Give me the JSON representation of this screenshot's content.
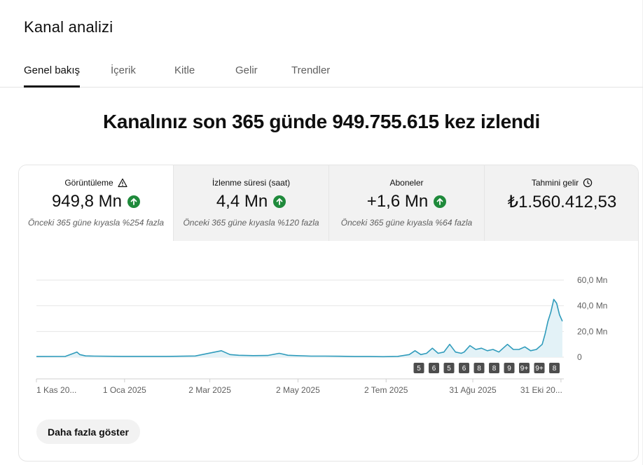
{
  "page": {
    "title": "Kanal analizi"
  },
  "tabs": [
    {
      "label": "Genel bakış",
      "active": true
    },
    {
      "label": "İçerik",
      "active": false
    },
    {
      "label": "Kitle",
      "active": false
    },
    {
      "label": "Gelir",
      "active": false
    },
    {
      "label": "Trendler",
      "active": false
    }
  ],
  "headline": "Kanalınız son 365 günde 949.755.615 kez izlendi",
  "metrics": [
    {
      "label": "Görüntüleme",
      "icon": "warning-icon",
      "value": "949,8 Mn",
      "trend": "up",
      "note": "Önceki 365 güne kıyasla %254 fazla"
    },
    {
      "label": "İzlenme süresi (saat)",
      "value": "4,4 Mn",
      "trend": "up",
      "note": "Önceki 365 güne kıyasla %120 fazla"
    },
    {
      "label": "Aboneler",
      "value": "+1,6 Mn",
      "trend": "up",
      "note": "Önceki 365 güne kıyasla %64 fazla"
    },
    {
      "label": "Tahmini gelir",
      "icon": "clock-icon",
      "value": "₺1.560.412,53"
    }
  ],
  "colors": {
    "line": "#2f9bbb",
    "fill": "#e3f2f7",
    "up": "#1f8a3b",
    "badge": "#4d4d4d"
  },
  "chart_data": {
    "type": "line",
    "y_ticks": [
      "60,0 Mn",
      "40,0 Mn",
      "20,0 Mn",
      "0"
    ],
    "y_values": [
      60,
      40,
      20,
      0
    ],
    "ylim": [
      0,
      60
    ],
    "x_tick_labels": [
      "1 Kas 20...",
      "1 Oca 2025",
      "2 Mar 2025",
      "2 May 2025",
      "2 Tem 2025",
      "31 Ağu 2025",
      "31 Eki 20..."
    ],
    "x_tick_days": [
      0,
      61,
      120,
      181,
      242,
      302,
      363
    ],
    "series": [
      {
        "days": [
          0,
          20,
          28,
          30,
          34,
          40,
          60,
          90,
          110,
          128,
          130,
          134,
          140,
          150,
          160,
          168,
          170,
          174,
          180,
          190,
          200,
          210,
          220,
          230,
          240,
          250,
          258,
          262,
          266,
          270,
          274,
          278,
          282,
          286,
          290,
          294,
          296,
          300,
          304,
          308,
          312,
          316,
          320,
          324,
          326,
          330,
          334,
          338,
          342,
          346,
          350,
          352,
          354,
          356,
          358,
          360,
          362,
          364
        ],
        "values": [
          0.5,
          0.6,
          4,
          2,
          1,
          0.8,
          0.6,
          0.6,
          0.9,
          5,
          4,
          2,
          1.5,
          1.2,
          1.3,
          3,
          2.5,
          1.5,
          1.2,
          0.8,
          0.8,
          0.7,
          0.5,
          0.5,
          0.4,
          0.6,
          2,
          5,
          2,
          3,
          7,
          3,
          4,
          10,
          4,
          3,
          4,
          9,
          6,
          7,
          5,
          6,
          4,
          8,
          10,
          6,
          6,
          8,
          5,
          6,
          10,
          18,
          28,
          35,
          45,
          42,
          33,
          28
        ]
      }
    ],
    "badges": [
      "5",
      "6",
      "5",
      "6",
      "8",
      "8",
      "9",
      "9+",
      "9+",
      "8"
    ]
  },
  "actions": {
    "show_more": "Daha fazla göster"
  }
}
